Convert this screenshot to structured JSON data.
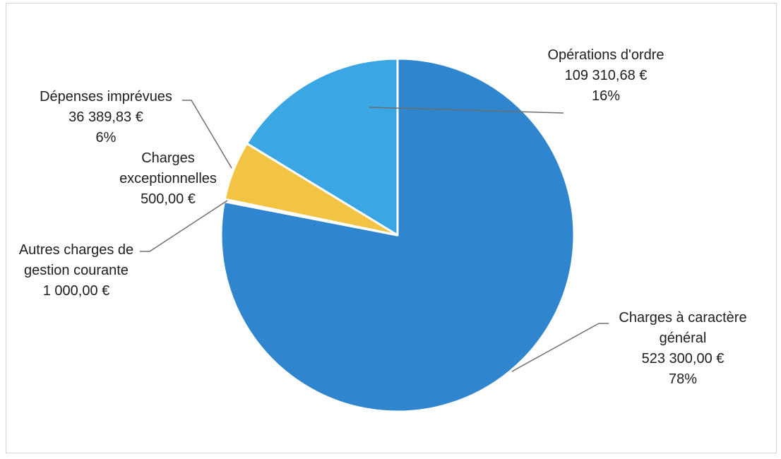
{
  "chart_data": {
    "type": "pie",
    "slices": [
      {
        "name": "Charges à caractère général",
        "value": 523300.0,
        "value_text": "523 300,00 €",
        "percent_text": "78%",
        "color": "#2f86cf"
      },
      {
        "name": "Autres charges de gestion courante",
        "value": 1000.0,
        "value_text": "1 000,00 €",
        "percent_text": "",
        "color": "#2f86cf"
      },
      {
        "name": "Charges exceptionnelles",
        "value": 500.0,
        "value_text": "500,00 €",
        "percent_text": "",
        "color": "#f3c443"
      },
      {
        "name": "Dépenses imprévues",
        "value": 36389.83,
        "value_text": "36 389,83 €",
        "percent_text": "6%",
        "color": "#f3c443"
      },
      {
        "name": "Opérations d'ordre",
        "value": 109310.68,
        "value_text": "109 310,68 €",
        "percent_text": "16%",
        "color": "#3aa6e3"
      }
    ],
    "labels": {
      "ops_name": "Opérations d'ordre",
      "ops_value": "109 310,68 €",
      "ops_pct": "16%",
      "dep_name": "Dépenses imprévues",
      "dep_value": "36 389,83 €",
      "dep_pct": "6%",
      "exc_name_1": "Charges",
      "exc_name_2": "exceptionnelles",
      "exc_value": "500,00 €",
      "aut_name_1": "Autres charges de",
      "aut_name_2": "gestion courante",
      "aut_value": "1 000,00 €",
      "gen_name_1": "Charges à caractère",
      "gen_name_2": "général",
      "gen_value": "523 300,00 €",
      "gen_pct": "78%"
    },
    "colors": {
      "main_blue": "#2f86cf",
      "light_blue": "#3aa6e3",
      "yellow": "#f3c443"
    },
    "start_angle": "top, clockwise",
    "legend": "none"
  }
}
